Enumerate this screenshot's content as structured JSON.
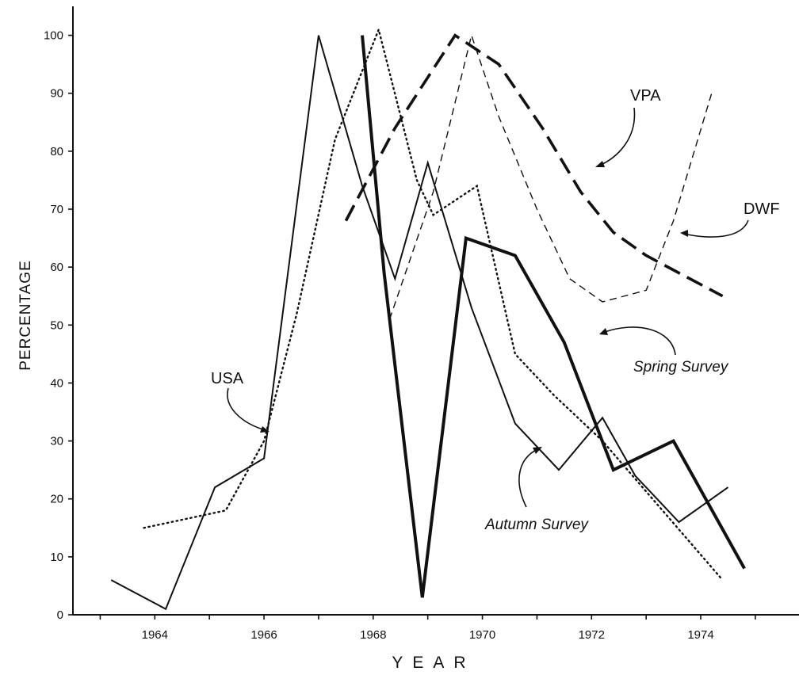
{
  "chart_data": {
    "type": "line",
    "xlabel": "YEAR",
    "ylabel": "PERCENTAGE",
    "xlim": [
      1962.5,
      1975.8
    ],
    "ylim": [
      0,
      105
    ],
    "x_ticks": [
      "1964",
      "1966",
      "1968",
      "1970",
      "1972",
      "1974"
    ],
    "y_ticks": [
      "0",
      "10",
      "20",
      "30",
      "40",
      "50",
      "60",
      "70",
      "80",
      "90",
      "100"
    ],
    "grid": false,
    "legend": "none (series labelled directly with arrows)",
    "series": [
      {
        "name": "USA",
        "style": "dotted",
        "x": [
          1963.8,
          1965.3,
          1966.0,
          1966.6,
          1967.3,
          1968.1,
          1968.8,
          1969.1,
          1969.9,
          1970.6,
          1971.3,
          1972.2,
          1973.3,
          1974.4
        ],
        "y": [
          15,
          18,
          30,
          52,
          82,
          101,
          75,
          69,
          74,
          45,
          38,
          30,
          18,
          6
        ]
      },
      {
        "name": "Autumn Survey",
        "style": "solid",
        "x": [
          1963.2,
          1964.2,
          1965.1,
          1966.0,
          1967.0,
          1967.8,
          1968.4,
          1969.0,
          1969.8,
          1970.6,
          1971.4,
          1972.2,
          1972.8,
          1973.6,
          1974.5
        ],
        "y": [
          6,
          1,
          22,
          27,
          100,
          74,
          58,
          78,
          53,
          33,
          25,
          34,
          24,
          16,
          22
        ]
      },
      {
        "name": "Spring Survey",
        "style": "solid-thick",
        "x": [
          1967.8,
          1968.2,
          1968.9,
          1969.7,
          1970.6,
          1971.5,
          1972.4,
          1973.5,
          1974.8
        ],
        "y": [
          100,
          59,
          3,
          65,
          62,
          47,
          25,
          30,
          8
        ]
      },
      {
        "name": "VPA",
        "style": "long-dash-thick",
        "x": [
          1967.5,
          1968.4,
          1969.5,
          1970.3,
          1971.1,
          1971.8,
          1972.4,
          1973.0,
          1973.6,
          1974.4
        ],
        "y": [
          68,
          84,
          100,
          95,
          84,
          73,
          66,
          62,
          59,
          55
        ]
      },
      {
        "name": "DWF",
        "style": "dashed-thin",
        "x": [
          1968.3,
          1969.1,
          1969.8,
          1970.3,
          1971.0,
          1971.6,
          1972.2,
          1973.0,
          1973.5,
          1974.2
        ],
        "y": [
          51,
          73,
          100,
          86,
          70,
          58,
          54,
          56,
          68,
          90
        ]
      }
    ]
  },
  "annotations": {
    "usa": "USA",
    "vpa": "VPA",
    "dwf": "DWF",
    "spring": "Spring Survey",
    "autumn": "Autumn Survey"
  }
}
